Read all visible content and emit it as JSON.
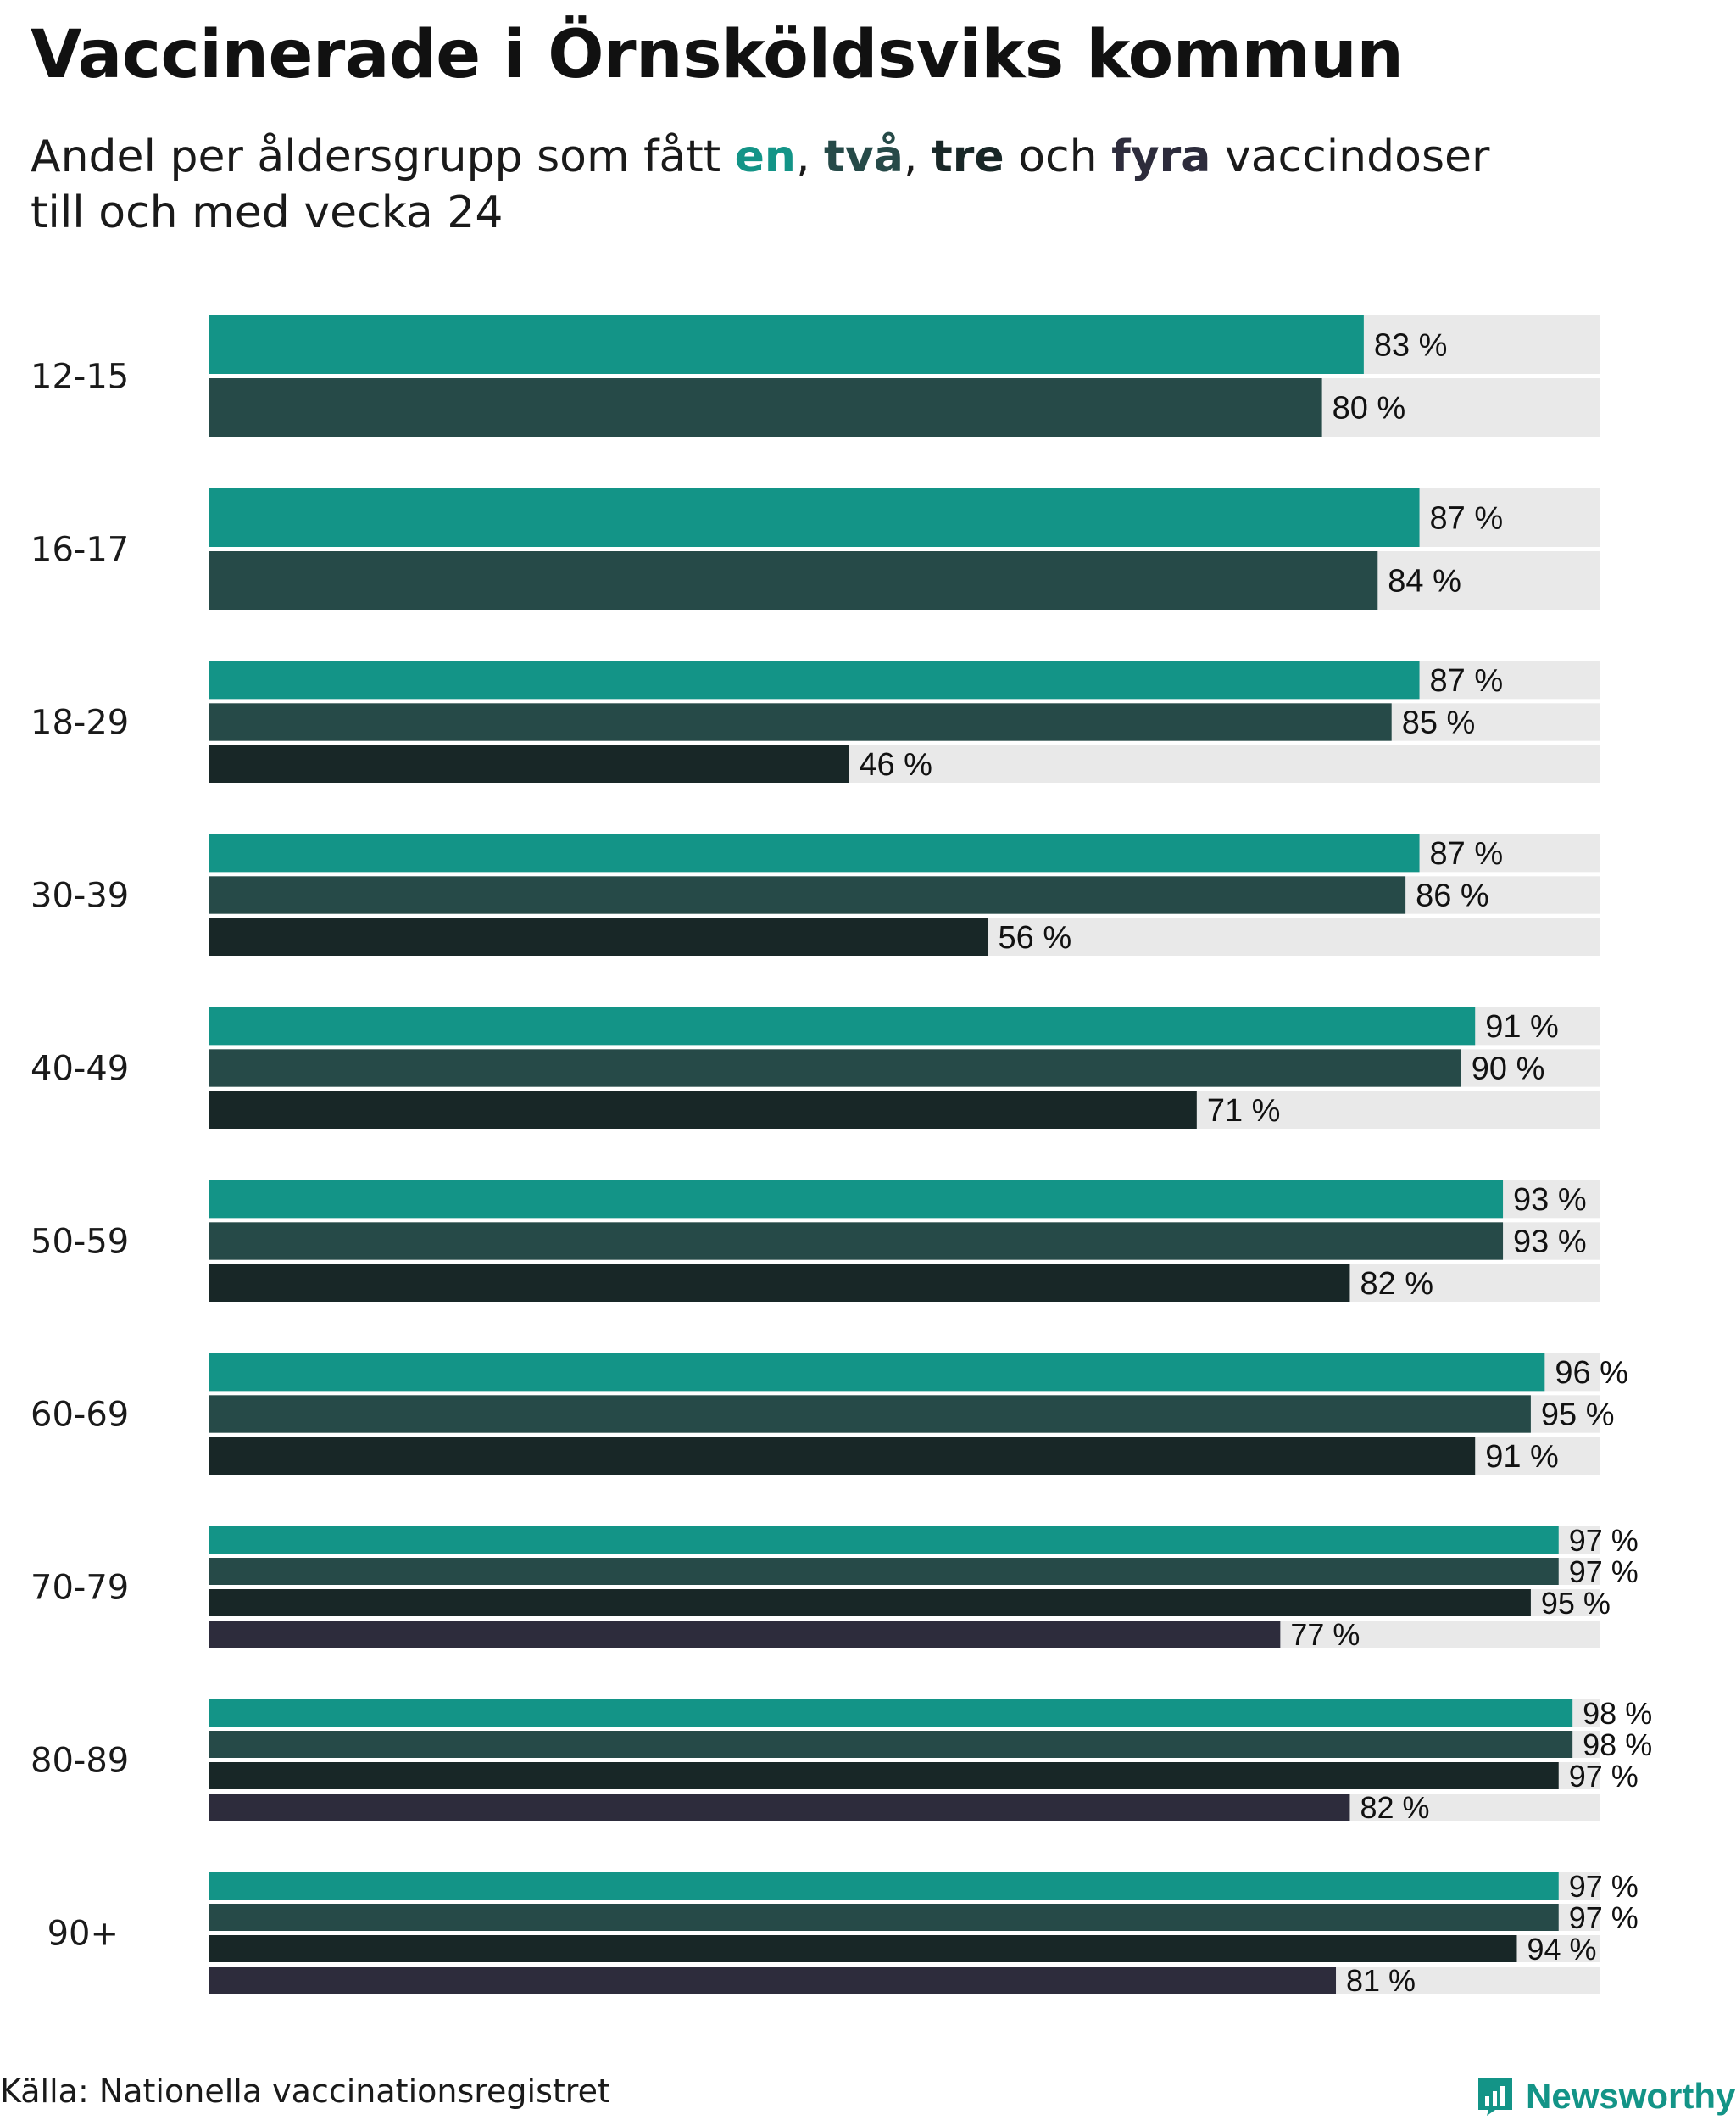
{
  "title": "Vaccinerade i Örnsköldsviks kommun",
  "subtitle": {
    "prefix": "Andel per åldersgrupp som fått ",
    "dose1": "en",
    "sep1": ", ",
    "dose2": "två",
    "sep2": ", ",
    "dose3": "tre",
    "sep3": " och ",
    "dose4": "fyra",
    "suffix_line1": " vaccindoser",
    "line2": "till och med vecka 24"
  },
  "colors": {
    "dose1": "#139487",
    "dose2": "#264a48",
    "dose3": "#182727",
    "dose4": "#2d2c3c",
    "track": "#e9e9e9"
  },
  "chart_data": {
    "type": "bar",
    "orientation": "horizontal",
    "title": "Vaccinerade i Örnsköldsviks kommun",
    "subtitle": "Andel per åldersgrupp som fått en, två, tre och fyra vaccindoser till och med vecka 24",
    "xlim": [
      0,
      100
    ],
    "value_suffix": " %",
    "categories": [
      "12-15",
      "16-17",
      "18-29",
      "30-39",
      "40-49",
      "50-59",
      "60-69",
      "70-79",
      "80-89",
      "90+"
    ],
    "series": [
      {
        "name": "en",
        "color": "#139487",
        "values": [
          83,
          87,
          87,
          87,
          91,
          93,
          96,
          97,
          98,
          97
        ]
      },
      {
        "name": "två",
        "color": "#264a48",
        "values": [
          80,
          84,
          85,
          86,
          90,
          93,
          95,
          97,
          98,
          97
        ]
      },
      {
        "name": "tre",
        "color": "#182727",
        "values": [
          null,
          null,
          46,
          56,
          71,
          82,
          91,
          95,
          97,
          94
        ]
      },
      {
        "name": "fyra",
        "color": "#2d2c3c",
        "values": [
          null,
          null,
          null,
          null,
          null,
          null,
          null,
          77,
          82,
          81
        ]
      }
    ]
  },
  "footer": {
    "source": "Källa: Nationella vaccinationsregistret",
    "brand": "Newsworthy"
  }
}
